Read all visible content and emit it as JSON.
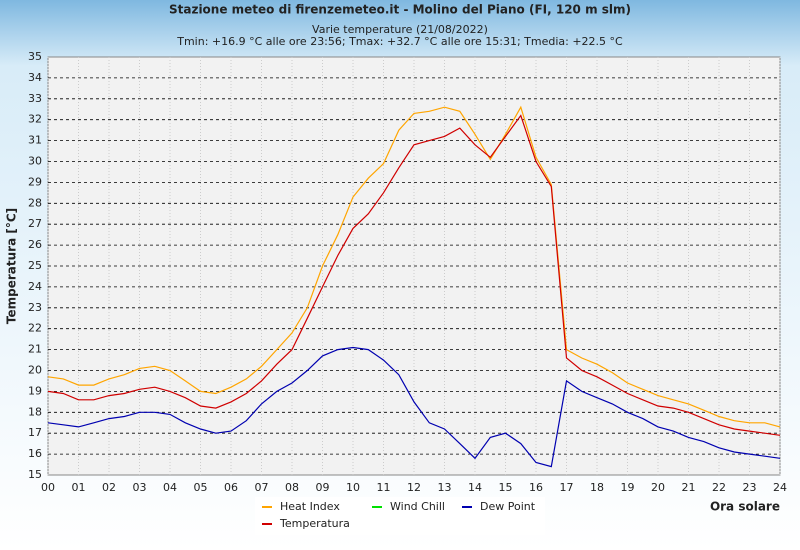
{
  "chart_data": {
    "type": "line",
    "title": "Stazione meteo di firenzemeteo.it - Molino del Piano (FI, 120 m slm)",
    "subtitle": "Varie temperature (21/08/2022)",
    "subtitle2": "Tmin: +16.9 °C alle ore 23:56; Tmax: +32.7 °C alle ore 15:31; Tmedia: +22.5 °C",
    "y_label": "Temperatura [°C]",
    "x_label": "Ora solare",
    "xlim": [
      0,
      24
    ],
    "ylim": [
      15,
      35
    ],
    "xticks": [
      {
        "value": 0,
        "label": "00"
      },
      {
        "value": 1,
        "label": "01"
      },
      {
        "value": 2,
        "label": "02"
      },
      {
        "value": 3,
        "label": "03"
      },
      {
        "value": 4,
        "label": "04"
      },
      {
        "value": 5,
        "label": "05"
      },
      {
        "value": 6,
        "label": "06"
      },
      {
        "value": 7,
        "label": "07"
      },
      {
        "value": 8,
        "label": "08"
      },
      {
        "value": 9,
        "label": "09"
      },
      10,
      11,
      12,
      13,
      14,
      15,
      16,
      17,
      18,
      19,
      20,
      21,
      22,
      23,
      24
    ],
    "yticks": [
      15,
      16,
      17,
      18,
      19,
      20,
      21,
      22,
      23,
      24,
      25,
      26,
      27,
      28,
      29,
      30,
      31,
      32,
      33,
      34,
      35
    ],
    "grid": true,
    "x": [
      0,
      0.5,
      1,
      1.5,
      2,
      2.5,
      3,
      3.5,
      4,
      4.5,
      5,
      5.5,
      6,
      6.5,
      7,
      7.5,
      8,
      8.5,
      9,
      9.5,
      10,
      10.5,
      11,
      11.5,
      12,
      12.5,
      13,
      13.5,
      14,
      14.5,
      15,
      15.5,
      16,
      16.5,
      17,
      17.5,
      18,
      18.5,
      19,
      19.5,
      20,
      20.5,
      21,
      21.5,
      22,
      22.5,
      23,
      23.5,
      24
    ],
    "series": [
      {
        "name": "Heat Index",
        "color": "#ffa500",
        "values": [
          19.7,
          19.6,
          19.3,
          19.3,
          19.6,
          19.8,
          20.1,
          20.2,
          20.0,
          19.5,
          19.0,
          18.9,
          19.2,
          19.6,
          20.2,
          21.0,
          21.8,
          23.0,
          25.0,
          26.5,
          28.3,
          29.2,
          29.9,
          31.5,
          32.3,
          32.4,
          32.6,
          32.4,
          31.3,
          30.1,
          31.3,
          32.6,
          30.2,
          28.9,
          21.0,
          20.6,
          20.3,
          19.9,
          19.4,
          19.1,
          18.8,
          18.6,
          18.4,
          18.1,
          17.8,
          17.6,
          17.5,
          17.5,
          17.3
        ]
      },
      {
        "name": "Wind Chill",
        "color": "#00e000",
        "values": [
          null,
          null,
          null,
          null,
          null,
          null,
          null,
          null,
          null,
          null,
          null,
          null,
          null,
          null,
          null,
          null,
          null,
          null,
          null,
          null,
          null,
          null,
          null,
          null,
          null,
          null,
          null,
          null,
          null,
          null,
          null,
          null,
          null,
          null,
          null,
          null,
          null,
          null,
          null,
          null,
          null,
          null,
          null,
          null,
          null,
          null,
          null,
          null,
          null
        ]
      },
      {
        "name": "Dew Point",
        "color": "#0000b0",
        "values": [
          17.5,
          17.4,
          17.3,
          17.5,
          17.7,
          17.8,
          18.0,
          18.0,
          17.9,
          17.5,
          17.2,
          17.0,
          17.1,
          17.6,
          18.4,
          19.0,
          19.4,
          20.0,
          20.7,
          21.0,
          21.1,
          21.0,
          20.5,
          19.8,
          18.5,
          17.5,
          17.2,
          16.5,
          15.8,
          16.8,
          17.0,
          16.5,
          15.6,
          15.4,
          19.5,
          19.0,
          18.7,
          18.4,
          18.0,
          17.7,
          17.3,
          17.1,
          16.8,
          16.6,
          16.3,
          16.1,
          16.0,
          15.9,
          15.8
        ]
      },
      {
        "name": "Temperatura",
        "color": "#d00000",
        "values": [
          19.0,
          18.9,
          18.6,
          18.6,
          18.8,
          18.9,
          19.1,
          19.2,
          19.0,
          18.7,
          18.3,
          18.2,
          18.5,
          18.9,
          19.5,
          20.3,
          21.0,
          22.5,
          24.0,
          25.5,
          26.8,
          27.5,
          28.5,
          29.7,
          30.8,
          31.0,
          31.2,
          31.6,
          30.8,
          30.2,
          31.2,
          32.2,
          30.0,
          28.8,
          20.6,
          20.0,
          19.7,
          19.3,
          18.9,
          18.6,
          18.3,
          18.2,
          18.0,
          17.7,
          17.4,
          17.2,
          17.1,
          17.0,
          16.9
        ]
      }
    ]
  }
}
